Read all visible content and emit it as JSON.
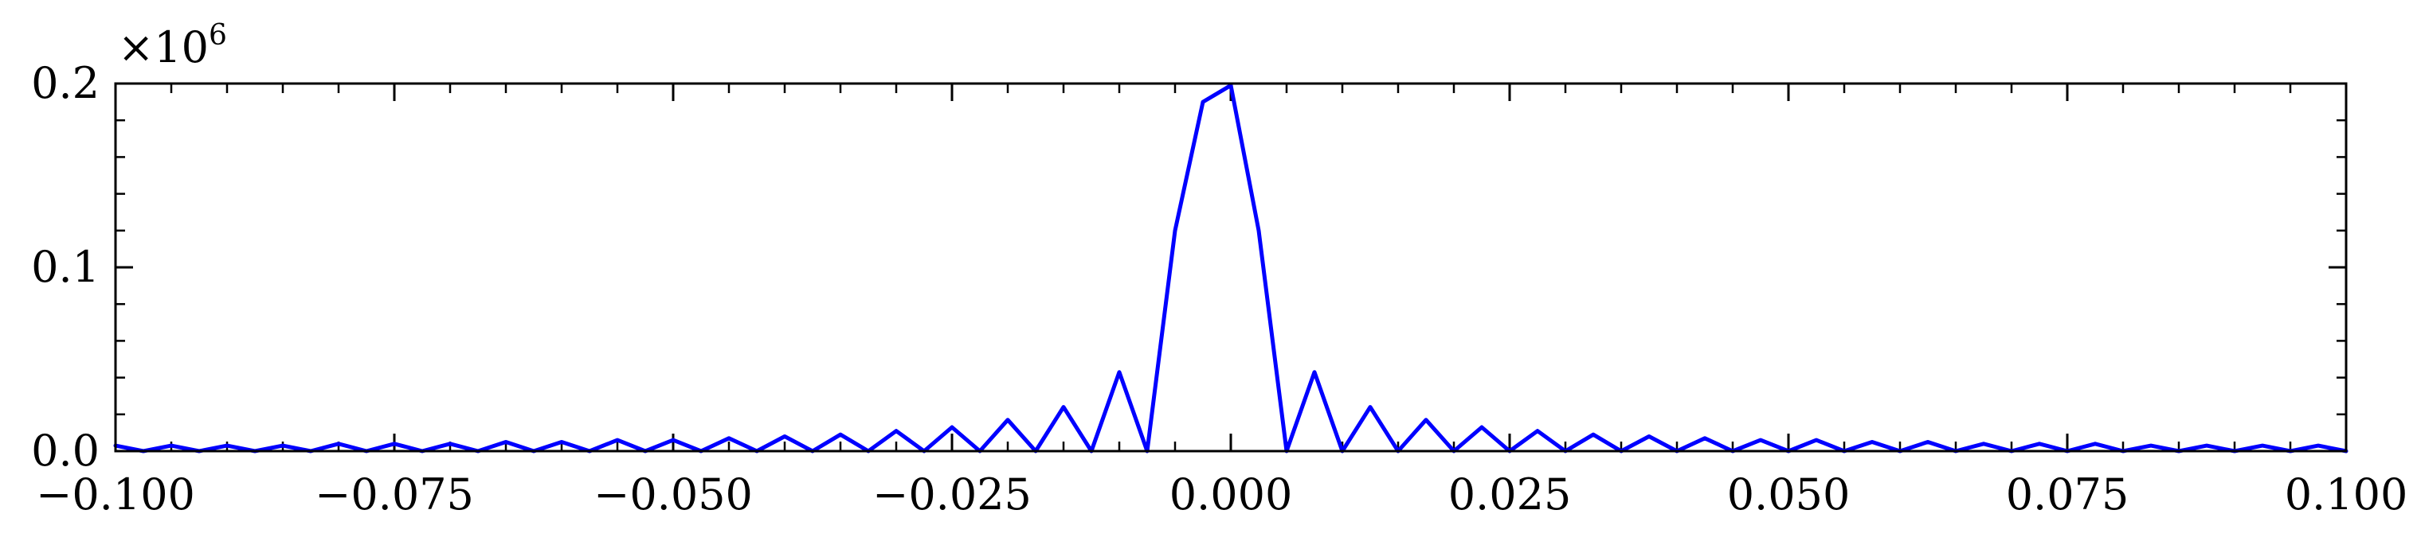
{
  "chart_data": {
    "type": "line",
    "title": "",
    "xlabel": "",
    "ylabel": "",
    "xlim": [
      -0.1,
      0.1
    ],
    "ylim": [
      0.0,
      0.2
    ],
    "y_multiplier_label": "×10",
    "y_multiplier_exponent": "6",
    "x_tick_labels": [
      "−0.100",
      "−0.075",
      "−0.050",
      "−0.025",
      "0.000",
      "0.025",
      "0.050",
      "0.075",
      "0.100"
    ],
    "x_tick_values": [
      -0.1,
      -0.075,
      -0.05,
      -0.025,
      0.0,
      0.025,
      0.05,
      0.075,
      0.1
    ],
    "y_tick_labels": [
      "0.0",
      "0.1",
      "0.2"
    ],
    "y_tick_values": [
      0.0,
      0.1,
      0.2
    ],
    "grid": false,
    "line_color": "#0000ff",
    "series": [
      {
        "x": [
          -0.1,
          -0.0975,
          -0.095,
          -0.0925,
          -0.09,
          -0.0875,
          -0.085,
          -0.0825,
          -0.08,
          -0.0775,
          -0.075,
          -0.0725,
          -0.07,
          -0.0675,
          -0.065,
          -0.0625,
          -0.06,
          -0.0575,
          -0.055,
          -0.0525,
          -0.05,
          -0.0475,
          -0.045,
          -0.0425,
          -0.04,
          -0.0375,
          -0.035,
          -0.0325,
          -0.03,
          -0.0275,
          -0.025,
          -0.0225,
          -0.02,
          -0.0175,
          -0.015,
          -0.0125,
          -0.01,
          -0.0075,
          -0.005,
          -0.0025,
          0.0,
          0.0025,
          0.005,
          0.0075,
          0.01,
          0.0125,
          0.015,
          0.0175,
          0.02,
          0.0225,
          0.025,
          0.0275,
          0.03,
          0.0325,
          0.035,
          0.0375,
          0.04,
          0.0425,
          0.045,
          0.0475,
          0.05,
          0.0525,
          0.055,
          0.0575,
          0.06,
          0.0625,
          0.065,
          0.0675,
          0.07,
          0.0725,
          0.075,
          0.0775,
          0.08,
          0.0825,
          0.085,
          0.0875,
          0.09,
          0.0925,
          0.095,
          0.0975,
          0.1
        ],
        "values": [
          0.003,
          0.0,
          0.003,
          0.0,
          0.003,
          0.0,
          0.003,
          0.0,
          0.004,
          0.0,
          0.004,
          0.0,
          0.004,
          0.0,
          0.005,
          0.0,
          0.005,
          0.0,
          0.006,
          0.0,
          0.006,
          0.0,
          0.007,
          0.0,
          0.008,
          0.0,
          0.009,
          0.0,
          0.011,
          0.0,
          0.013,
          0.0,
          0.017,
          0.0,
          0.024,
          0.0,
          0.043,
          0.0,
          0.12,
          0.19,
          0.199,
          0.12,
          0.0,
          0.043,
          0.0,
          0.024,
          0.0,
          0.017,
          0.0,
          0.013,
          0.0,
          0.011,
          0.0,
          0.009,
          0.0,
          0.008,
          0.0,
          0.007,
          0.0,
          0.006,
          0.0,
          0.006,
          0.0,
          0.005,
          0.0,
          0.005,
          0.0,
          0.004,
          0.0,
          0.004,
          0.0,
          0.004,
          0.0,
          0.003,
          0.0,
          0.003,
          0.0,
          0.003,
          0.0,
          0.003,
          0.0
        ]
      }
    ]
  }
}
